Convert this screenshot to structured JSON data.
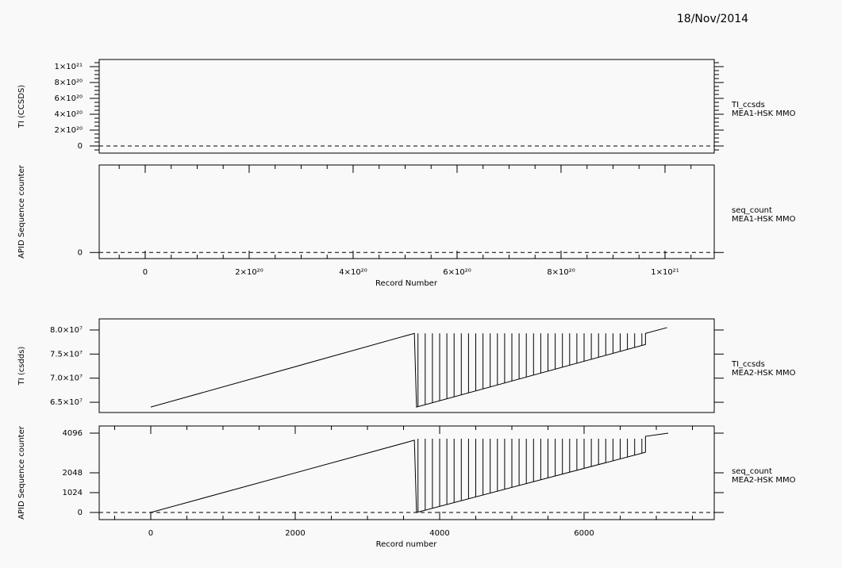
{
  "date": "18/Nov/2014",
  "chart_data": [
    {
      "type": "line",
      "ylabel": "TI (CCSDS)",
      "xlim": [
        -8.85e+19,
        1.0947e+21
      ],
      "ylim": [
        -9e+19,
        1.09e+21
      ],
      "yticks": [
        0,
        {
          "value": 2e+20,
          "label": "2×10²⁰"
        },
        {
          "value": 4e+20,
          "label": "4×10²⁰"
        },
        {
          "value": 6e+20,
          "label": "6×10²⁰"
        },
        {
          "value": 8e+20,
          "label": "8×10²⁰"
        },
        {
          "value": 1e+21,
          "label": "1×10²¹"
        }
      ],
      "yminor": 4,
      "zero_line": true,
      "instrument": "MEA1-HSK MMO",
      "series": [
        {
          "name": "TI_ccsds",
          "color": "#000000",
          "x": [],
          "values": []
        }
      ]
    },
    {
      "type": "line",
      "ylabel": "APID Sequence counter",
      "xlabel": "Record Number",
      "xlim": [
        -8.85e+19,
        1.0947e+21
      ],
      "ylim": [
        -0.07,
        1
      ],
      "yticks": [
        0
      ],
      "xticks": [
        0,
        {
          "value": 2e+20,
          "label": "2×10²⁰"
        },
        {
          "value": 4e+20,
          "label": "4×10²⁰"
        },
        {
          "value": 6e+20,
          "label": "6×10²⁰"
        },
        {
          "value": 8e+20,
          "label": "8×10²⁰"
        },
        {
          "value": 1e+21,
          "label": "1×10²¹"
        }
      ],
      "xminor": 4,
      "zero_line": true,
      "instrument": "MEA1-HSK MMO",
      "series": [
        {
          "name": "seq_count",
          "color": "#000000",
          "x": [],
          "values": []
        }
      ]
    },
    {
      "type": "line",
      "ylabel": "TI (csdds)",
      "xlim": [
        -714,
        7802
      ],
      "ylim": [
        62870000.0,
        82300000.0
      ],
      "yticks": [
        {
          "value": 65000000.0,
          "label": "6.5×10⁷"
        },
        {
          "value": 70000000.0,
          "label": "7.0×10⁷"
        },
        {
          "value": 75000000.0,
          "label": "7.5×10⁷"
        },
        {
          "value": 80000000.0,
          "label": "8.0×10⁷"
        }
      ],
      "zero_line": false,
      "instrument": "MEA2-HSK MMO",
      "series": [
        {
          "name": "TI_ccsds",
          "color": "#000000",
          "x": [
            0,
            3650,
            3680,
            6850,
            6850,
            7150
          ],
          "values": [
            64000000.0,
            79300000.0,
            64000000.0,
            77000000.0,
            79300000.0,
            80500000.0
          ]
        }
      ],
      "spikes": {
        "x": [
          3700,
          3800,
          3900,
          4000,
          4100,
          4200,
          4300,
          4400,
          4500,
          4600,
          4700,
          4800,
          4900,
          5000,
          5100,
          5200,
          5300,
          5400,
          5500,
          5600,
          5700,
          5800,
          5900,
          6000,
          6100,
          6200,
          6300,
          6400,
          6500,
          6600,
          6700,
          6800
        ],
        "values": [
          79300000.0,
          79300000.0,
          79300000.0,
          79300000.0,
          79300000.0,
          79300000.0,
          79300000.0,
          79300000.0,
          79300000.0,
          79300000.0,
          79300000.0,
          79300000.0,
          79300000.0,
          79300000.0,
          79300000.0,
          79300000.0,
          79300000.0,
          79300000.0,
          79300000.0,
          79300000.0,
          79300000.0,
          79300000.0,
          79300000.0,
          79300000.0,
          79300000.0,
          79300000.0,
          79300000.0,
          79300000.0,
          79300000.0,
          79300000.0,
          79300000.0,
          79300000.0
        ]
      }
    },
    {
      "type": "line",
      "ylabel": "APID Sequence counter",
      "xlabel": "Record number",
      "xlim": [
        -714,
        7802
      ],
      "ylim": [
        -369,
        4465
      ],
      "yticks": [
        0,
        1024,
        2048,
        4096
      ],
      "xticks": [
        0,
        2000,
        4000,
        6000
      ],
      "xminor": 4,
      "zero_line": true,
      "instrument": "MEA2-HSK MMO",
      "series": [
        {
          "name": "seq_count",
          "color": "#000000",
          "x": [
            0,
            3650,
            3680,
            6850,
            6850,
            7165
          ],
          "values": [
            0,
            3730,
            0,
            3110,
            3930,
            4096
          ]
        }
      ],
      "spikes": {
        "x": [
          3700,
          3800,
          3900,
          4000,
          4100,
          4200,
          4300,
          4400,
          4500,
          4600,
          4700,
          4800,
          4900,
          5000,
          5100,
          5200,
          5300,
          5400,
          5500,
          5600,
          5700,
          5800,
          5900,
          6000,
          6100,
          6200,
          6300,
          6400,
          6500,
          6600,
          6700,
          6800
        ],
        "values": [
          3810,
          3810,
          3810,
          3810,
          3810,
          3810,
          3810,
          3810,
          3810,
          3810,
          3810,
          3810,
          3810,
          3810,
          3810,
          3810,
          3810,
          3810,
          3810,
          3810,
          3810,
          3810,
          3810,
          3810,
          3810,
          3810,
          3810,
          3810,
          3810,
          3810,
          3810,
          3810
        ]
      }
    }
  ]
}
